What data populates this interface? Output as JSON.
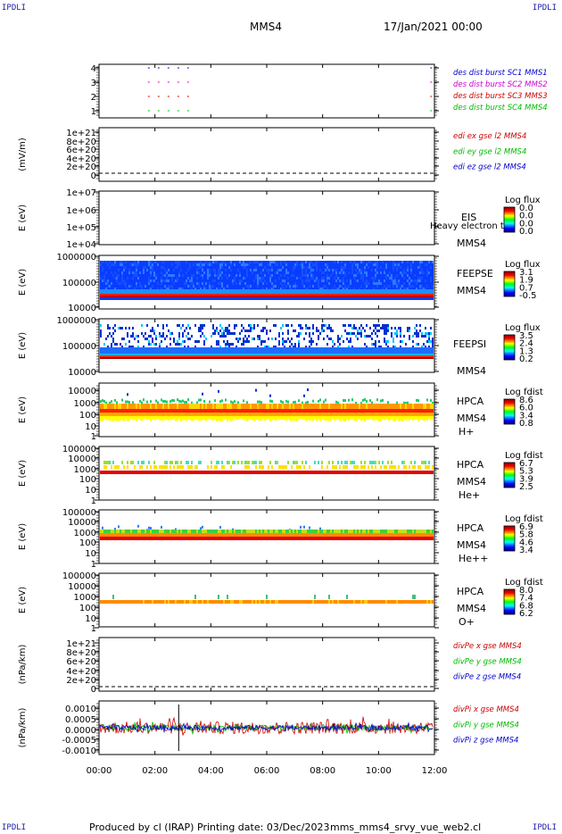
{
  "corners": {
    "tl": "IPDLI",
    "tr": "IPDLI",
    "bl": "IPDLI",
    "br": "IPDLI"
  },
  "header": {
    "spacecraft": "MMS4",
    "datetime": "17/Jan/2021 00:00"
  },
  "footer": {
    "produced": "Produced by cl (IRAP)",
    "printing": "Printing date: 03/Dec/2023",
    "file": "mms_mms4_srvy_vue_web2.cl"
  },
  "time_axis": {
    "ticks": [
      "00:00",
      "02:00",
      "04:00",
      "06:00",
      "08:00",
      "10:00",
      "12:00"
    ],
    "range_hours": [
      0,
      12
    ]
  },
  "chart_data": [
    {
      "id": "burst",
      "type": "line",
      "ylabel": "",
      "yticks": [
        "1",
        "2",
        "3",
        "4"
      ],
      "legend": [
        {
          "text": "des dist burst SC1 MMS1",
          "color": "#0000cc"
        },
        {
          "text": "des dist burst SC2 MMS2",
          "color": "#cc00cc"
        },
        {
          "text": "des dist burst SC3 MMS3",
          "color": "#cc0000"
        },
        {
          "text": "des dist burst SC4 MMS4",
          "color": "#00bb00"
        }
      ],
      "series": [
        {
          "level": 4,
          "color": "#00bb00",
          "segments": [
            [
              1.75,
              3.4
            ],
            [
              11.85,
              12
            ]
          ]
        },
        {
          "level": 3,
          "color": "#cc0000",
          "segments": [
            [
              1.75,
              3.4
            ],
            [
              11.85,
              12
            ]
          ]
        },
        {
          "level": 2,
          "color": "#cc00cc",
          "segments": [
            [
              1.75,
              3.4
            ],
            [
              11.85,
              12
            ]
          ]
        },
        {
          "level": 1,
          "color": "#0000cc",
          "segments": [
            [
              1.75,
              3.4
            ],
            [
              11.85,
              12
            ]
          ]
        }
      ]
    },
    {
      "id": "edi",
      "type": "line",
      "ylabel": "(mV/m)",
      "yticks": [
        "1e+21",
        "8e+20",
        "6e+20",
        "4e+20",
        "2e+20",
        "0"
      ],
      "legend": [
        {
          "text": "edi ex gse l2 MMS4",
          "color": "#cc0000"
        },
        {
          "text": "edi ey gse l2 MMS4",
          "color": "#00bb00"
        },
        {
          "text": "edi ez gse l2 MMS4",
          "color": "#0000cc"
        }
      ],
      "zero_line": true
    },
    {
      "id": "eis",
      "type": "heatmap",
      "ylabel": "E (eV)",
      "scale": "log",
      "yticks": [
        "1e+07",
        "1e+06",
        "1e+05",
        "1e+04"
      ],
      "labels": [
        "EIS",
        "MMS4"
      ],
      "overlay_text": "Heavy electron to",
      "colorbar": {
        "title": "Log flux",
        "ticks": [
          "0.0",
          "0.0",
          "0.0",
          "0.0"
        ]
      }
    },
    {
      "id": "feepse",
      "type": "heatmap",
      "ylabel": "E (eV)",
      "scale": "log",
      "yticks": [
        "1000000",
        "100000",
        "10000"
      ],
      "labels": [
        "FEEPSE",
        "MMS4"
      ],
      "colorbar": {
        "title": "Log flux",
        "ticks": [
          "3.1",
          "1.9",
          "0.7",
          "-0.5"
        ]
      }
    },
    {
      "id": "feepsi",
      "type": "heatmap",
      "ylabel": "E (eV)",
      "scale": "log",
      "yticks": [
        "1000000",
        "100000",
        "10000"
      ],
      "labels": [
        "FEEPSI",
        "MMS4"
      ],
      "colorbar": {
        "title": "Log flux",
        "ticks": [
          "3.5",
          "2.4",
          "1.3",
          "0.2"
        ]
      }
    },
    {
      "id": "hpca_h",
      "type": "heatmap",
      "ylabel": "E (eV)",
      "scale": "log",
      "yticks": [
        "10000",
        "1000",
        "100",
        "10",
        "1"
      ],
      "labels": [
        "HPCA",
        "MMS4",
        "H+"
      ],
      "colorbar": {
        "title": "Log fdist",
        "ticks": [
          "8.6",
          "6.0",
          "3.4",
          "0.8"
        ]
      }
    },
    {
      "id": "hpca_he",
      "type": "heatmap",
      "ylabel": "E (eV)",
      "scale": "log",
      "yticks": [
        "100000",
        "10000",
        "1000",
        "100",
        "10",
        "1"
      ],
      "labels": [
        "HPCA",
        "MMS4",
        "He+"
      ],
      "colorbar": {
        "title": "Log fdist",
        "ticks": [
          "6.7",
          "5.3",
          "3.9",
          "2.5"
        ]
      }
    },
    {
      "id": "hpca_hepp",
      "type": "heatmap",
      "ylabel": "E (eV)",
      "scale": "log",
      "yticks": [
        "100000",
        "10000",
        "1000",
        "100",
        "10",
        "1"
      ],
      "labels": [
        "HPCA",
        "MMS4",
        "He++"
      ],
      "colorbar": {
        "title": "Log fdist",
        "ticks": [
          "6.9",
          "5.8",
          "4.6",
          "3.4"
        ]
      }
    },
    {
      "id": "hpca_o",
      "type": "heatmap",
      "ylabel": "E (eV)",
      "scale": "log",
      "yticks": [
        "100000",
        "10000",
        "1000",
        "100",
        "10",
        "1"
      ],
      "labels": [
        "HPCA",
        "MMS4",
        "O+"
      ],
      "colorbar": {
        "title": "Log fdist",
        "ticks": [
          "8.0",
          "7.4",
          "6.8",
          "6.2"
        ]
      }
    },
    {
      "id": "divpe",
      "type": "line",
      "ylabel": "(nPa/km)",
      "yticks": [
        "1e+21",
        "8e+20",
        "6e+20",
        "4e+20",
        "2e+20",
        "0"
      ],
      "legend": [
        {
          "text": "divPe x gse MMS4",
          "color": "#cc0000"
        },
        {
          "text": "divPe y gse MMS4",
          "color": "#00bb00"
        },
        {
          "text": "divPe z gse MMS4",
          "color": "#0000cc"
        }
      ],
      "zero_line": true
    },
    {
      "id": "divpi",
      "type": "line",
      "ylabel": "(nPa/km)",
      "yticks": [
        "0.0010",
        "0.0005",
        "0.0000",
        "-0.0005",
        "-0.0010"
      ],
      "ylim": [
        -0.0013,
        0.0013
      ],
      "legend": [
        {
          "text": "divPi x gse MMS4",
          "color": "#cc0000"
        },
        {
          "text": "divPi y gse MMS4",
          "color": "#00bb00"
        },
        {
          "text": "divPi z gse MMS4",
          "color": "#0000cc"
        }
      ],
      "noise": {
        "x_amplitude": 0.0003,
        "y_amplitude": 0.00015,
        "z_amplitude": 0.00012
      }
    }
  ]
}
